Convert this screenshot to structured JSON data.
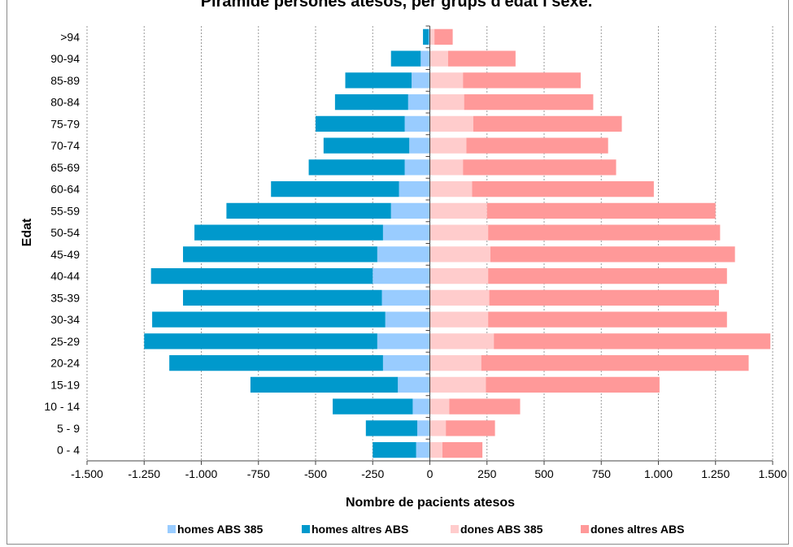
{
  "chart_data": {
    "type": "bar",
    "orientation": "horizontal",
    "stacked": true,
    "title": "Piràmide persones atesos, per grups d'edat i sexe.",
    "xlabel": "Nombre de pacients atesos",
    "ylabel": "Edat",
    "xlim": [
      -1500,
      1500
    ],
    "xticks": [
      -1500,
      -1250,
      -1000,
      -750,
      -500,
      -250,
      0,
      250,
      500,
      750,
      1000,
      1250,
      1500
    ],
    "xtick_labels": [
      "-1.500",
      "-1.250",
      "-1.000",
      "-750",
      "-500",
      "-250",
      "0",
      "250",
      "500",
      "750",
      "1.000",
      "1.250",
      "1.500"
    ],
    "grid": true,
    "legend_position": "bottom",
    "categories": [
      ">94",
      "90-94",
      "85-89",
      "80-84",
      "75-79",
      "70-74",
      "65-69",
      "60-64",
      "55-59",
      "50-54",
      "45-49",
      "40-44",
      "35-39",
      "30-34",
      "25-29",
      "20-24",
      "15-19",
      "10 - 14",
      "5 - 9",
      "0 - 4"
    ],
    "series": [
      {
        "name": "homes ABS 385",
        "color": "#99ccff",
        "values": [
          -5,
          -40,
          -80,
          -95,
          -110,
          -90,
          -110,
          -135,
          -170,
          -205,
          -230,
          -250,
          -210,
          -195,
          -230,
          -205,
          -140,
          -75,
          -55,
          -60
        ]
      },
      {
        "name": "homes altres ABS",
        "color": "#0099cc",
        "values": [
          -25,
          -130,
          -290,
          -320,
          -390,
          -375,
          -420,
          -560,
          -720,
          -825,
          -850,
          -970,
          -870,
          -1020,
          -1020,
          -935,
          -645,
          -350,
          -225,
          -190
        ]
      },
      {
        "name": "dones ABS 385",
        "color": "#ffcccc",
        "values": [
          20,
          80,
          145,
          150,
          190,
          160,
          145,
          185,
          250,
          255,
          265,
          255,
          260,
          255,
          280,
          225,
          245,
          85,
          70,
          55
        ]
      },
      {
        "name": "dones altres ABS",
        "color": "#ff9999",
        "values": [
          80,
          295,
          515,
          565,
          650,
          620,
          670,
          795,
          1000,
          1015,
          1070,
          1045,
          1005,
          1045,
          1210,
          1170,
          760,
          310,
          215,
          175
        ]
      }
    ]
  }
}
